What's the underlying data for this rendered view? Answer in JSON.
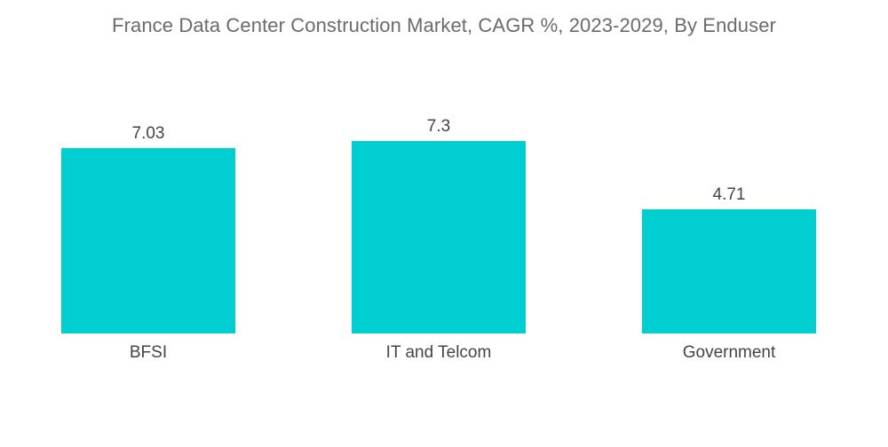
{
  "chart_data": {
    "type": "bar",
    "title": "France Data Center Construction Market, CAGR %, 2023-2029, By Enduser",
    "categories": [
      "BFSI",
      "IT and Telcom",
      "Government"
    ],
    "values": [
      7.03,
      7.3,
      4.71
    ],
    "value_labels": [
      "7.03",
      "7.3",
      "4.71"
    ],
    "xlabel": "",
    "ylabel": "",
    "ylim": [
      0,
      7.3
    ],
    "grid": false,
    "legend": "none",
    "bar_color": "#00CED1"
  }
}
